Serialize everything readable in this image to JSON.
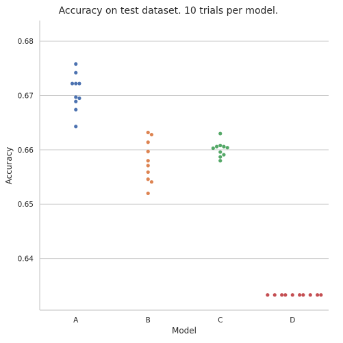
{
  "chart_data": {
    "type": "scatter",
    "subtype": "swarm",
    "title": "Accuracy on test dataset. 10 trials per model.",
    "xlabel": "Model",
    "ylabel": "Accuracy",
    "categories": [
      "A",
      "B",
      "C",
      "D"
    ],
    "ylim": [
      0.6305,
      0.6838
    ],
    "yticks": [
      0.64,
      0.65,
      0.66,
      0.67,
      0.68
    ],
    "ytick_labels": [
      "0.64",
      "0.65",
      "0.66",
      "0.67",
      "0.68"
    ],
    "grid": "horizontal",
    "series": [
      {
        "category": "A",
        "color": "#4c72b0",
        "values": [
          0.6758,
          0.6742,
          0.6722,
          0.6722,
          0.6722,
          0.6697,
          0.6695,
          0.6689,
          0.6674,
          0.6643
        ]
      },
      {
        "category": "B",
        "color": "#dd8452",
        "values": [
          0.6632,
          0.6628,
          0.6614,
          0.6597,
          0.658,
          0.6571,
          0.6559,
          0.6546,
          0.6541,
          0.652
        ]
      },
      {
        "category": "C",
        "color": "#55a868",
        "values": [
          0.663,
          0.6608,
          0.6606,
          0.6606,
          0.6604,
          0.6603,
          0.6596,
          0.6591,
          0.6587,
          0.658
        ]
      },
      {
        "category": "D",
        "color": "#c44e52",
        "values": [
          0.6333,
          0.6333,
          0.6333,
          0.6333,
          0.6333,
          0.6333,
          0.6333,
          0.6333,
          0.6333,
          0.6333
        ]
      }
    ]
  }
}
